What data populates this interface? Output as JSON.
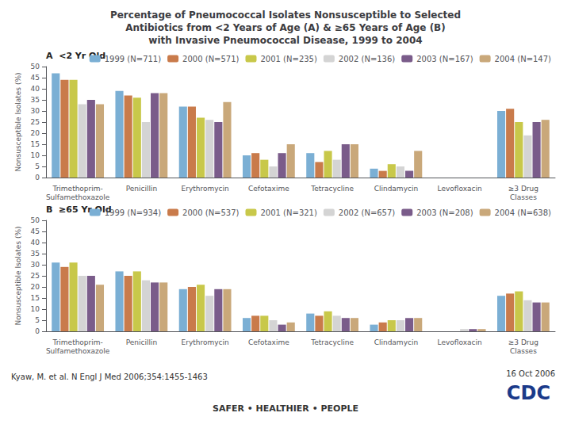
{
  "chart_data": [
    {
      "type": "bar",
      "title": "Percentage of Pneumococcal Isolates Nonsusceptible to Selected\nAntibiotics from <2 Years of Age (A) & ≥65 Years of Age (B)\nwith Invasive Pneumococcal Disease, 1999 to 2004",
      "annotations": [
        "A  <2 Yr Old"
      ],
      "categories": [
        "Trimethoprim-\nSulfamethoxazole",
        "Penicillin",
        "Erythromycin",
        "Cefotaxime",
        "Tetracycline",
        "Clindamycin",
        "Levofloxacin",
        "≥3 Drug\nClasses"
      ],
      "ylabel": "Nonsusceptible Isolates (%)",
      "ylim": [
        0,
        50
      ],
      "yticks": [
        0,
        5,
        10,
        15,
        20,
        25,
        30,
        35,
        40,
        45,
        50
      ],
      "grid": false,
      "legend": "upper right",
      "series": [
        {
          "name": "1999 (N=711)",
          "color": "#7bafd4",
          "values": [
            47,
            39,
            32,
            10,
            11,
            4,
            0,
            30
          ]
        },
        {
          "name": "2000 (N=571)",
          "color": "#c97b4b",
          "values": [
            44,
            37,
            32,
            11,
            7,
            3,
            0,
            31
          ]
        },
        {
          "name": "2001 (N=235)",
          "color": "#c8c84a",
          "values": [
            44,
            36,
            27,
            8,
            12,
            6,
            0,
            25
          ]
        },
        {
          "name": "2002 (N=136)",
          "color": "#d4d4d4",
          "values": [
            33,
            25,
            26,
            5,
            8,
            5,
            0,
            19
          ]
        },
        {
          "name": "2003 (N=167)",
          "color": "#7a5c8a",
          "values": [
            35,
            38,
            25,
            11,
            15,
            3,
            0,
            25
          ]
        },
        {
          "name": "2004 (N=147)",
          "color": "#c9a87a",
          "values": [
            33,
            38,
            34,
            15,
            15,
            12,
            0,
            26
          ]
        }
      ]
    },
    {
      "type": "bar",
      "annotations": [
        "B  ≥65 Yr Old",
        "Kyaw, M. et al. N Engl J Med 2006;354:1455-1463",
        "16 Oct 2006",
        "CDC",
        "SAFER • HEALTHIER • PEOPLE"
      ],
      "categories": [
        "Trimethoprim-\nSulfamethoxazole",
        "Penicillin",
        "Erythromycin",
        "Cefotaxime",
        "Tetracycline",
        "Clindamycin",
        "Levofloxacin",
        "≥3 Drug\nClasses"
      ],
      "ylabel": "Nonsusceptible Isolates (%)",
      "ylim": [
        0,
        50
      ],
      "yticks": [
        0,
        5,
        10,
        15,
        20,
        25,
        30,
        35,
        40,
        45,
        50
      ],
      "grid": false,
      "legend": "upper right",
      "series": [
        {
          "name": "1999 (N=934)",
          "color": "#7bafd4",
          "values": [
            31,
            27,
            19,
            6,
            8,
            3,
            0,
            16
          ]
        },
        {
          "name": "2000 (N=537)",
          "color": "#c97b4b",
          "values": [
            29,
            25,
            20,
            7,
            7,
            4,
            0,
            17
          ]
        },
        {
          "name": "2001 (N=321)",
          "color": "#c8c84a",
          "values": [
            31,
            27,
            21,
            7,
            9,
            5,
            0,
            18
          ]
        },
        {
          "name": "2002 (N=657)",
          "color": "#d4d4d4",
          "values": [
            25,
            23,
            16,
            5,
            7,
            5,
            1,
            14
          ]
        },
        {
          "name": "2003 (N=208)",
          "color": "#7a5c8a",
          "values": [
            25,
            22,
            19,
            3,
            6,
            6,
            1,
            13
          ]
        },
        {
          "name": "2004 (N=638)",
          "color": "#c9a87a",
          "values": [
            21,
            22,
            19,
            4,
            6,
            6,
            1,
            13
          ]
        }
      ]
    }
  ]
}
